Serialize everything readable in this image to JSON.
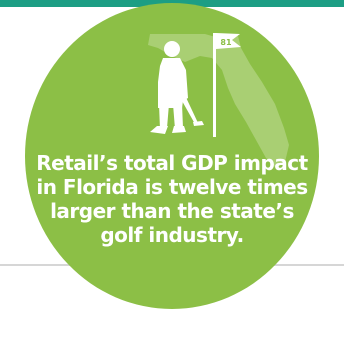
{
  "infographic": {
    "statement": "Retail’s total GDP impact in Florida is twelve times larger than the state’s golf industry.",
    "flag_label": "81",
    "colors": {
      "circle": "#8cbf46",
      "state_silhouette": "#a9cf73",
      "figures": "#ffffff",
      "top_bar": "#1c9e84",
      "divider": "#d6d6d6"
    },
    "icons": [
      "florida-map-icon",
      "golfer-icon",
      "golf-flag-icon"
    ]
  }
}
